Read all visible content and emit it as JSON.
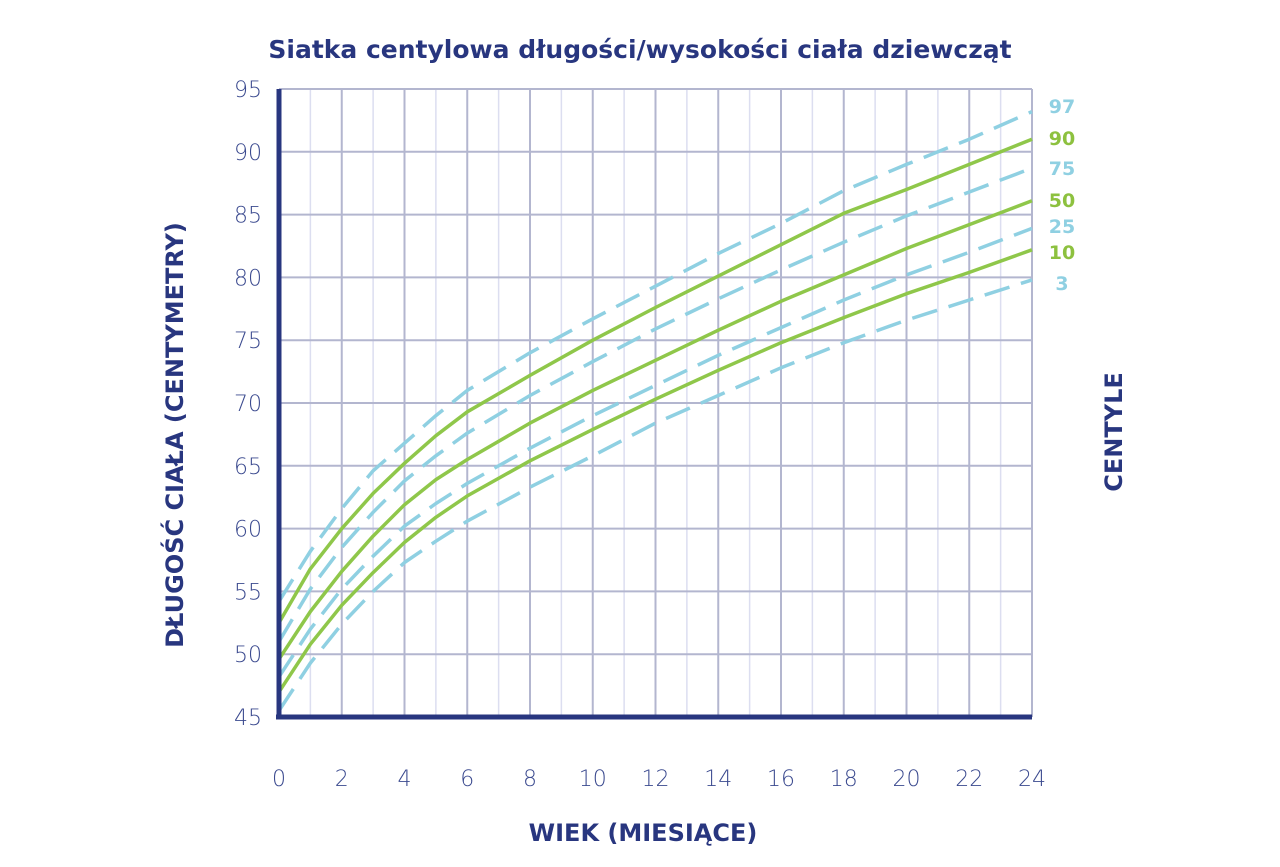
{
  "colors": {
    "axis": "#28367f",
    "grid_major": "#b3b6cf",
    "grid_minor": "#dcdef0",
    "solid_line": "#8fc74a",
    "dashed_line": "#8fd0e2",
    "label_green": "#8dc13f",
    "label_blue": "#8fd0e2"
  },
  "chart_data": {
    "type": "line",
    "title": "Siatka centylowa długości/wysokości ciała dziewcząt",
    "xlabel": "WIEK (MIESIĄCE)",
    "ylabel": "DŁUGOŚĆ CIAŁA (CENTYMETRY)",
    "legend_title": "CENTYLE",
    "xlim": [
      0,
      24
    ],
    "ylim": [
      45,
      95
    ],
    "x_ticks": [
      "0",
      "2",
      "4",
      "6",
      "8",
      "10",
      "12",
      "14",
      "16",
      "18",
      "20",
      "22",
      "24"
    ],
    "y_ticks": [
      "45",
      "50",
      "55",
      "60",
      "65",
      "70",
      "75",
      "80",
      "85",
      "90",
      "95"
    ],
    "grid": true,
    "legend_position": "right",
    "x": [
      0,
      1,
      2,
      3,
      4,
      5,
      6,
      8,
      10,
      12,
      14,
      16,
      18,
      20,
      22,
      24
    ],
    "series": [
      {
        "name": "97",
        "style": "dashed",
        "values": [
          54.2,
          58.2,
          61.6,
          64.6,
          66.8,
          69.0,
          71.0,
          74.0,
          76.7,
          79.3,
          81.9,
          84.3,
          86.9,
          89.0,
          91.0,
          93.2
        ]
      },
      {
        "name": "90",
        "style": "solid",
        "values": [
          52.5,
          56.8,
          60.0,
          62.8,
          65.2,
          67.4,
          69.3,
          72.2,
          75.0,
          77.6,
          80.1,
          82.6,
          85.1,
          87.0,
          89.0,
          91.0
        ]
      },
      {
        "name": "75",
        "style": "dashed",
        "values": [
          51.0,
          55.2,
          58.5,
          61.3,
          63.8,
          65.8,
          67.6,
          70.6,
          73.3,
          75.9,
          78.3,
          80.6,
          82.8,
          84.9,
          86.8,
          88.7
        ]
      },
      {
        "name": "50",
        "style": "solid",
        "values": [
          49.6,
          53.4,
          56.6,
          59.4,
          61.9,
          63.9,
          65.5,
          68.4,
          71.0,
          73.4,
          75.8,
          78.1,
          80.2,
          82.3,
          84.2,
          86.1
        ]
      },
      {
        "name": "25",
        "style": "dashed",
        "values": [
          48.2,
          52.0,
          55.2,
          57.8,
          60.2,
          62.0,
          63.6,
          66.4,
          69.0,
          71.4,
          73.8,
          76.0,
          78.2,
          80.2,
          82.0,
          83.9
        ]
      },
      {
        "name": "10",
        "style": "solid",
        "values": [
          47.0,
          50.8,
          53.9,
          56.5,
          58.9,
          60.9,
          62.6,
          65.4,
          67.9,
          70.3,
          72.6,
          74.8,
          76.8,
          78.7,
          80.4,
          82.2
        ]
      },
      {
        "name": "3",
        "style": "dashed",
        "values": [
          45.5,
          49.3,
          52.4,
          55.0,
          57.3,
          59.0,
          60.6,
          63.3,
          65.8,
          68.4,
          70.6,
          72.8,
          74.8,
          76.6,
          78.2,
          79.8
        ]
      }
    ]
  }
}
